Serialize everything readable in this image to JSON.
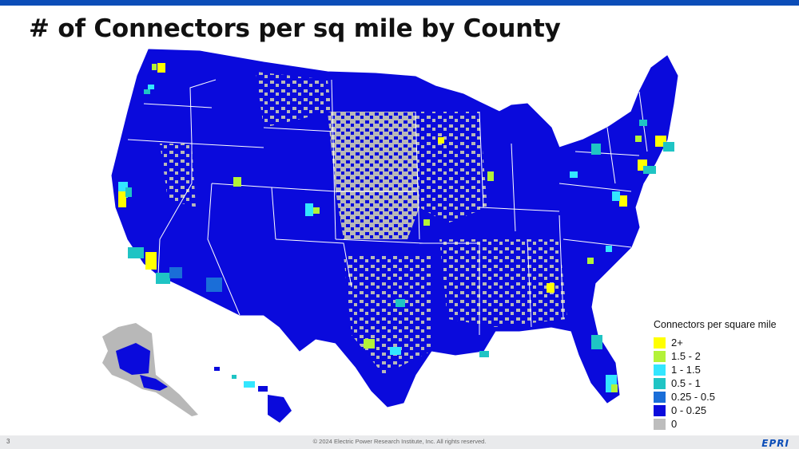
{
  "slide": {
    "title": "# of Connectors per sq mile by County",
    "page_number": "3",
    "copyright": "© 2024 Electric Power Research Institute, Inc. All rights reserved.",
    "logo_text": "EPRI"
  },
  "legend": {
    "title": "Connectors per square mile",
    "items": [
      {
        "label": "2+",
        "color": "#ffff00"
      },
      {
        "label": "1.5 - 2",
        "color": "#b3f238"
      },
      {
        "label": "1 - 1.5",
        "color": "#33e6ff"
      },
      {
        "label": "0.5 - 1",
        "color": "#1fc4c4"
      },
      {
        "label": "0.25 - 0.5",
        "color": "#1a6ed8"
      },
      {
        "label": "0 - 0.25",
        "color": "#0a0adc"
      },
      {
        "label": "0",
        "color": "#bdbdbd"
      }
    ]
  },
  "colors": {
    "accent_bar": "#0b4db8",
    "state_border": "#ffffff"
  }
}
